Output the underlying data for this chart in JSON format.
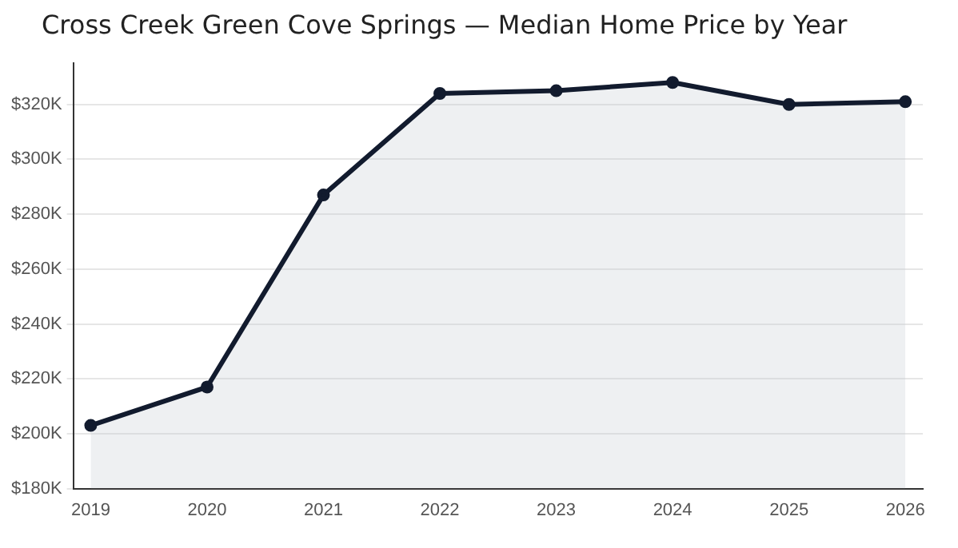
{
  "chart_data": {
    "type": "area",
    "title": "Cross Creek Green Cove Springs — Median Home Price by Year",
    "x": [
      2019,
      2020,
      2021,
      2022,
      2023,
      2024,
      2025,
      2026
    ],
    "series": [
      {
        "color": "#121b2e",
        "values": [
          203000,
          217000,
          287000,
          324000,
          325000,
          328000,
          320000,
          321000
        ]
      }
    ],
    "xlim": [
      2018.85,
      2026.15
    ],
    "xticks": [
      2019,
      2020,
      2021,
      2022,
      2023,
      2024,
      2025,
      2026
    ],
    "ylim": [
      180000,
      335000
    ],
    "yticks": [
      {
        "value": 180000,
        "label": "$180K"
      },
      {
        "value": 200000,
        "label": "$200K"
      },
      {
        "value": 220000,
        "label": "$220K"
      },
      {
        "value": 240000,
        "label": "$240K"
      },
      {
        "value": 260000,
        "label": "$260K"
      },
      {
        "value": 280000,
        "label": "$280K"
      },
      {
        "value": 300000,
        "label": "$300K"
      },
      {
        "value": 320000,
        "label": "$320K"
      }
    ],
    "grid": "y",
    "legend": false,
    "marker": "circle",
    "line_style": "solid"
  }
}
